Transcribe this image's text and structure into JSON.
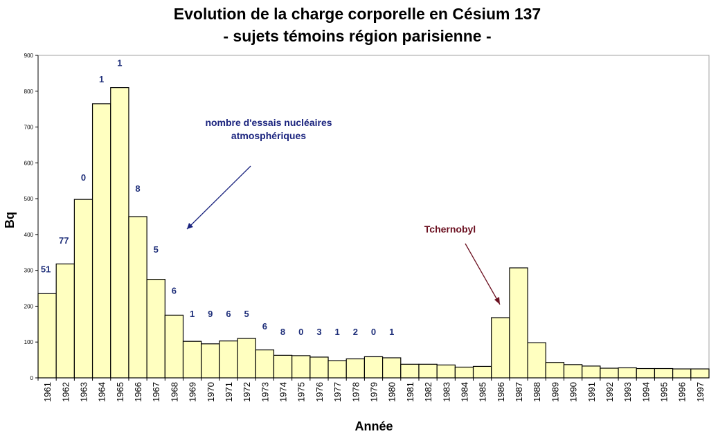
{
  "chart_data": {
    "type": "bar",
    "title": "Evolution de la charge corporelle en Césium 137",
    "subtitle": "- sujets témoins région parisienne -",
    "xlabel": "Année",
    "ylabel": "Bq",
    "ylim": [
      0,
      900
    ],
    "yticks": [
      0,
      100,
      200,
      300,
      400,
      500,
      600,
      700,
      800,
      900
    ],
    "grid": false,
    "categories": [
      "1961",
      "1962",
      "1963",
      "1964",
      "1965",
      "1966",
      "1967",
      "1968",
      "1969",
      "1970",
      "1971",
      "1972",
      "1973",
      "1974",
      "1975",
      "1976",
      "1977",
      "1978",
      "1979",
      "1980",
      "1981",
      "1982",
      "1983",
      "1984",
      "1985",
      "1986",
      "1987",
      "1988",
      "1989",
      "1990",
      "1991",
      "1992",
      "1993",
      "1994",
      "1995",
      "1996",
      "1997"
    ],
    "values": [
      235,
      318,
      498,
      765,
      810,
      450,
      275,
      175,
      102,
      95,
      103,
      110,
      78,
      63,
      62,
      58,
      48,
      53,
      59,
      56,
      38,
      38,
      36,
      30,
      32,
      168,
      307,
      98,
      43,
      37,
      33,
      27,
      28,
      26,
      26,
      25,
      25
    ],
    "test_counts": [
      {
        "year": "1961",
        "label": "51",
        "value_y": 295
      },
      {
        "year": "1962",
        "label": "77",
        "value_y": 375
      },
      {
        "year": "1963",
        "label": "0",
        "value_y": 550
      },
      {
        "year": "1964",
        "label": "1",
        "value_y": 825
      },
      {
        "year": "1965",
        "label": "1",
        "value_y": 870
      },
      {
        "year": "1966",
        "label": "8",
        "value_y": 520
      },
      {
        "year": "1967",
        "label": "5",
        "value_y": 350
      },
      {
        "year": "1968",
        "label": "6",
        "value_y": 235
      },
      {
        "year": "1969",
        "label": "1",
        "value_y": 170
      },
      {
        "year": "1970",
        "label": "9",
        "value_y": 170
      },
      {
        "year": "1971",
        "label": "6",
        "value_y": 170
      },
      {
        "year": "1972",
        "label": "5",
        "value_y": 170
      },
      {
        "year": "1973",
        "label": "6",
        "value_y": 135
      },
      {
        "year": "1974",
        "label": "8",
        "value_y": 120
      },
      {
        "year": "1975",
        "label": "0",
        "value_y": 120
      },
      {
        "year": "1976",
        "label": "3",
        "value_y": 120
      },
      {
        "year": "1977",
        "label": "1",
        "value_y": 120
      },
      {
        "year": "1978",
        "label": "2",
        "value_y": 120
      },
      {
        "year": "1979",
        "label": "0",
        "value_y": 120
      },
      {
        "year": "1980",
        "label": "1",
        "value_y": 120
      }
    ],
    "annotations": [
      {
        "id": "tests",
        "line1": "nombre d'essais nucléaires",
        "line2": "atmosphériques"
      },
      {
        "id": "chernobyl",
        "line1": "Tchernobyl"
      }
    ],
    "colors": {
      "bar_fill": "#ffffc0",
      "bar_stroke": "#000000",
      "plot_border": "#a0a0a0",
      "test_label": "#1f2f7a",
      "tests_annotation": "#1a237e",
      "chernobyl_annotation": "#6b1020"
    }
  }
}
